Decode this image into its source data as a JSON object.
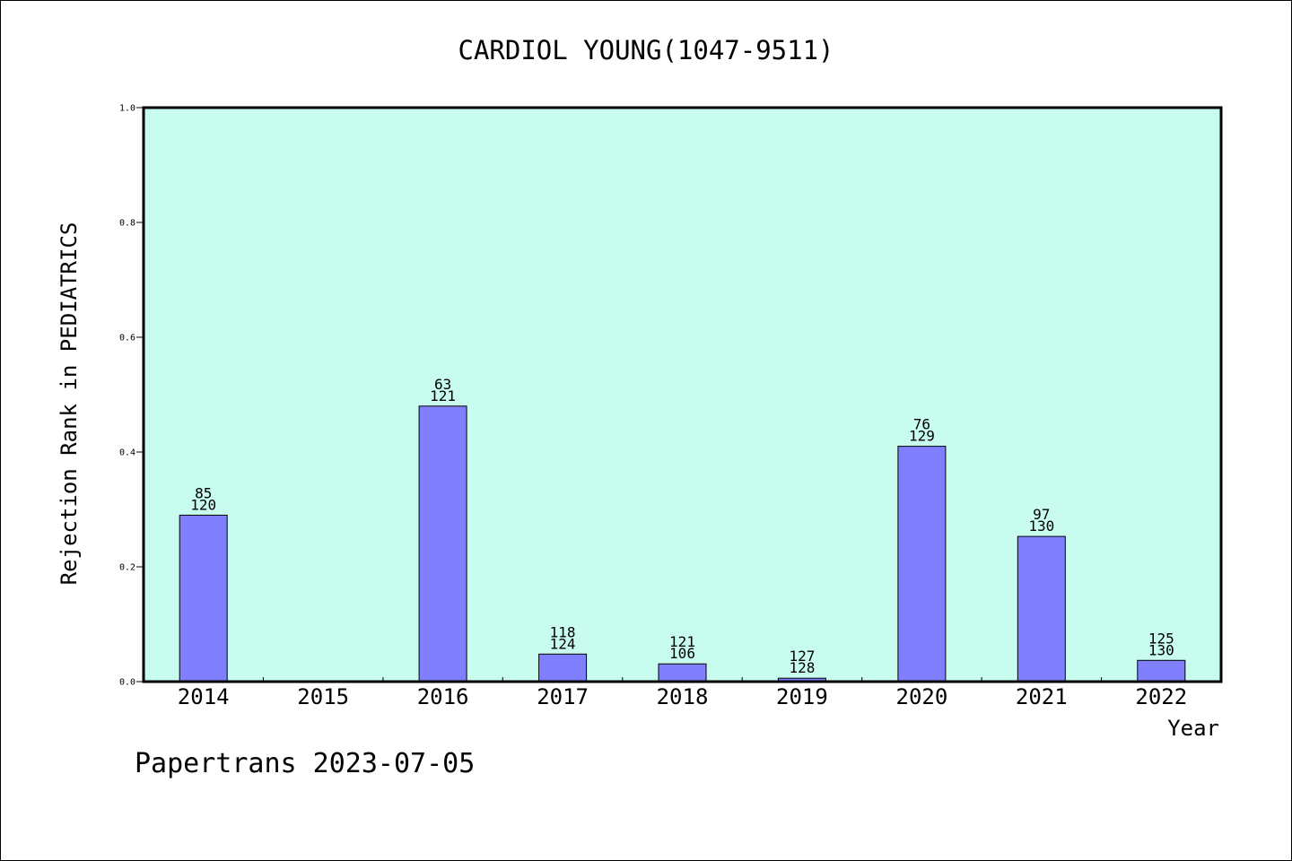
{
  "chart_data": {
    "type": "bar",
    "title": "CARDIOL YOUNG(1047-9511)",
    "xlabel": "Year",
    "ylabel": "Rejection Rank in PEDIATRICS",
    "categories": [
      "2014",
      "2015",
      "2016",
      "2017",
      "2018",
      "2019",
      "2020",
      "2021",
      "2022"
    ],
    "values": [
      0.29,
      0,
      0.48,
      0.048,
      0.031,
      0.006,
      0.41,
      0.253,
      0.037
    ],
    "labels_top": [
      "85",
      "",
      "63",
      "118",
      "121",
      "127",
      "76",
      "97",
      "125"
    ],
    "labels_bottom": [
      "120",
      "",
      "121",
      "124",
      "106",
      "128",
      "129",
      "130",
      "130"
    ],
    "ylim": [
      0,
      1.0
    ],
    "yticks": [
      "0.0",
      "0.2",
      "0.4",
      "0.6",
      "0.8",
      "1.0"
    ],
    "grid": false,
    "colors": {
      "bar": "#8080ff",
      "plot_bg": "#c8fcee",
      "border": "#000000"
    }
  },
  "footer": "Papertrans 2023-07-05"
}
